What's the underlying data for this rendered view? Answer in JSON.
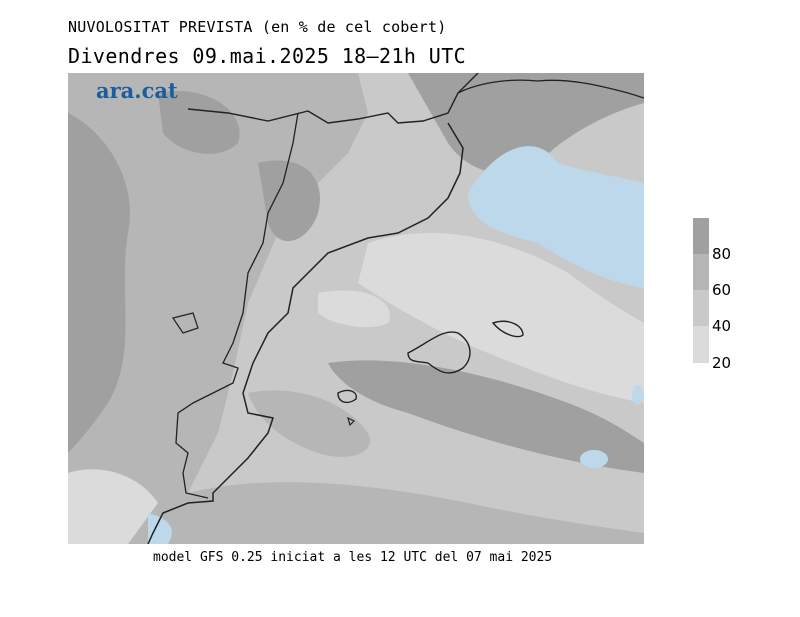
{
  "header": {
    "title_line1": "NUVOLOSITAT PREVISTA (en % de cel cobert)",
    "title_line2": "Divendres  09.mai.2025 18–21h UTC"
  },
  "logo": {
    "text": "ara.cat"
  },
  "footer": {
    "text": "model GFS 0.25 iniciat a les 12 UTC del 07 mai 2025"
  },
  "legend": {
    "ticks": [
      "80",
      "60",
      "40",
      "20"
    ],
    "colors": [
      "#a0a0a0",
      "#b6b6b6",
      "#c9c9c9",
      "#dbdbdb"
    ]
  },
  "map_colors": {
    "level_20": "#dbdbdb",
    "level_40": "#c9c9c9",
    "level_60": "#b6b6b6",
    "level_80": "#a0a0a0",
    "clear": "#bcd8ea",
    "coast": "#222222"
  }
}
